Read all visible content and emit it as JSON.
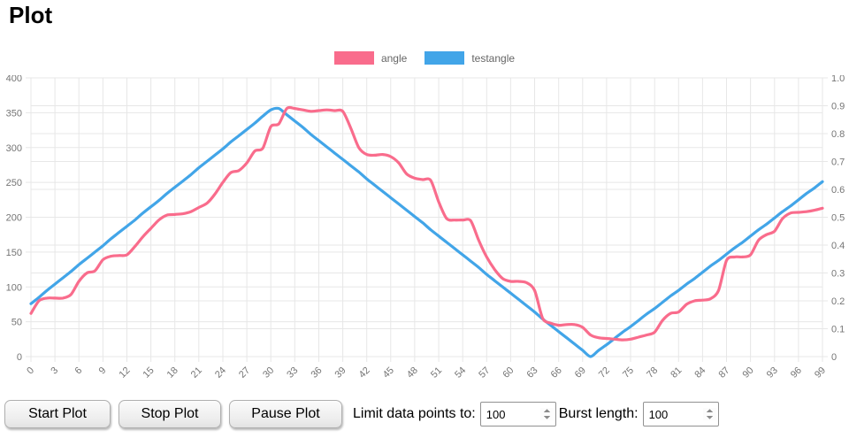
{
  "page": {
    "title": "Plot"
  },
  "legend": [
    {
      "label": "angle",
      "color": "#F96C8C"
    },
    {
      "label": "testangle",
      "color": "#42A5E8"
    }
  ],
  "controls": {
    "start_label": "Start Plot",
    "stop_label": "Stop Plot",
    "pause_label": "Pause Plot",
    "limit_label": "Limit data points to:",
    "limit_value": "100",
    "burst_label": "Burst length:",
    "burst_value": "100"
  },
  "chart_data": {
    "type": "line",
    "grid": true,
    "legend_position": "top",
    "x_min": 0,
    "x_max": 99,
    "x_tick_step": 3,
    "x_tick_labels": [
      "0",
      "3",
      "6",
      "9",
      "12",
      "15",
      "18",
      "21",
      "24",
      "27",
      "30",
      "33",
      "36",
      "39",
      "42",
      "45",
      "48",
      "51",
      "54",
      "57",
      "60",
      "63",
      "66",
      "69",
      "72",
      "75",
      "78",
      "81",
      "84",
      "87",
      "90",
      "93",
      "96",
      "99"
    ],
    "left_axis": {
      "min": 0,
      "max": 400,
      "step": 50,
      "labels": [
        "0",
        "50",
        "100",
        "150",
        "200",
        "250",
        "300",
        "350",
        "400"
      ]
    },
    "right_axis": {
      "min": 0,
      "max": 1,
      "step": 0.1,
      "labels": [
        "0",
        "0.1",
        "0.2",
        "0.3",
        "0.4",
        "0.5",
        "0.6",
        "0.7",
        "0.8",
        "0.9",
        "1.0"
      ]
    },
    "grid_color": "#e7e7e7",
    "tick_text_color": "#757575",
    "series": [
      {
        "name": "angle",
        "color": "#F96C8C",
        "axis": "left",
        "values": [
          62,
          80,
          84,
          84,
          84,
          89,
          108,
          120,
          123,
          139,
          144,
          145,
          146,
          158,
          172,
          184,
          196,
          203,
          204,
          205,
          208,
          214,
          220,
          233,
          250,
          264,
          267,
          278,
          295,
          299,
          330,
          334,
          356,
          356,
          354,
          352,
          353,
          354,
          353,
          352,
          328,
          300,
          290,
          289,
          290,
          287,
          278,
          262,
          256,
          254,
          253,
          222,
          198,
          196,
          196,
          195,
          167,
          143,
          125,
          112,
          108,
          108,
          106,
          95,
          55,
          48,
          45,
          46,
          46,
          42,
          31,
          27,
          26,
          25,
          24,
          25,
          28,
          31,
          35,
          52,
          62,
          64,
          75,
          80,
          81,
          83,
          95,
          138,
          143,
          143,
          146,
          167,
          175,
          180,
          198,
          206,
          207,
          208,
          210,
          213
        ]
      },
      {
        "name": "testangle",
        "color": "#42A5E8",
        "axis": "left",
        "values": [
          76,
          85,
          95,
          104,
          113,
          122,
          132,
          141,
          150,
          159,
          169,
          178,
          187,
          196,
          206,
          215,
          224,
          234,
          243,
          252,
          261,
          271,
          280,
          289,
          298,
          308,
          317,
          326,
          335,
          345,
          354,
          356,
          347,
          338,
          329,
          319,
          310,
          301,
          292,
          283,
          274,
          265,
          255,
          246,
          237,
          228,
          219,
          210,
          201,
          192,
          182,
          173,
          164,
          155,
          146,
          137,
          128,
          118,
          109,
          100,
          91,
          82,
          73,
          64,
          54,
          45,
          36,
          27,
          18,
          9,
          0,
          9,
          17,
          26,
          35,
          43,
          52,
          61,
          69,
          78,
          87,
          95,
          104,
          112,
          121,
          130,
          138,
          147,
          156,
          164,
          173,
          182,
          190,
          199,
          208,
          216,
          225,
          234,
          242,
          251
        ]
      }
    ]
  }
}
